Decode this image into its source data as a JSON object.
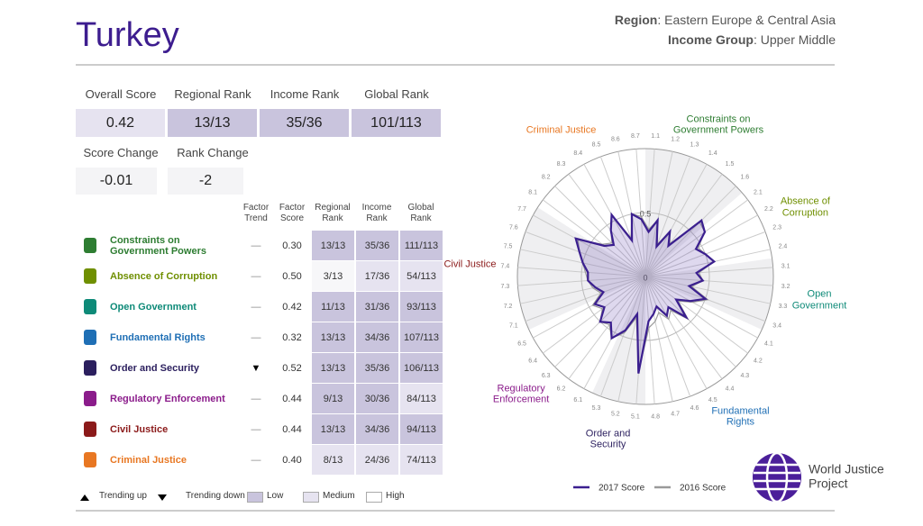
{
  "header": {
    "title": "Turkey",
    "region_label": "Region",
    "region": ": Eastern Europe & Central Asia",
    "income_label": "Income Group",
    "income": ": Upper Middle"
  },
  "summary": [
    {
      "label": "Overall Score",
      "value": 0.42
    },
    {
      "label": "Regional Rank",
      "value": "13/13"
    },
    {
      "label": "Income Rank",
      "value": "35/36"
    },
    {
      "label": "Global Rank",
      "value": "101/113"
    }
  ],
  "changes": [
    {
      "label": "Score Change",
      "value": -0.01
    },
    {
      "label": "Rank Change",
      "value": -2
    }
  ],
  "table": {
    "headers": [
      [
        "Factor",
        "Trend"
      ],
      [
        "Factor",
        "Score"
      ],
      [
        "Regional",
        "Rank"
      ],
      [
        "Income",
        "Rank"
      ],
      [
        "Global",
        "Rank"
      ]
    ],
    "rows": [
      {
        "factor": "Constraints on Government Powers",
        "color": "#2e7d32",
        "trend": "—",
        "score": "0.30",
        "ranks": [
          "13/13",
          "35/36",
          "111/113"
        ],
        "shades": [
          "#c9c4dd",
          "#c9c4dd",
          "#c9c4dd"
        ]
      },
      {
        "factor": "Absence of Corruption",
        "color": "#6f8f00",
        "trend": "—",
        "score": "0.50",
        "ranks": [
          "3/13",
          "17/36",
          "54/113"
        ],
        "shades": [
          "#f7f7f9",
          "#e6e3f0",
          "#e6e3f0"
        ]
      },
      {
        "factor": "Open Government",
        "color": "#0e8a78",
        "trend": "—",
        "score": "0.42",
        "ranks": [
          "11/13",
          "31/36",
          "93/113"
        ],
        "shades": [
          "#c9c4dd",
          "#c9c4dd",
          "#c9c4dd"
        ]
      },
      {
        "factor": "Fundamental Rights",
        "color": "#1f6fb5",
        "trend": "—",
        "score": "0.32",
        "ranks": [
          "13/13",
          "34/36",
          "107/113"
        ],
        "shades": [
          "#c9c4dd",
          "#c9c4dd",
          "#c9c4dd"
        ]
      },
      {
        "factor": "Order and Security",
        "color": "#2b1f5e",
        "trend": "▼",
        "score": "0.52",
        "ranks": [
          "13/13",
          "35/36",
          "106/113"
        ],
        "shades": [
          "#c9c4dd",
          "#c9c4dd",
          "#c9c4dd"
        ]
      },
      {
        "factor": "Regulatory Enforcement",
        "color": "#8b1c8b",
        "trend": "—",
        "score": "0.44",
        "ranks": [
          "9/13",
          "30/36",
          "84/113"
        ],
        "shades": [
          "#c9c4dd",
          "#c9c4dd",
          "#e6e3f0"
        ]
      },
      {
        "factor": "Civil Justice",
        "color": "#8b1a1a",
        "trend": "—",
        "score": "0.44",
        "ranks": [
          "13/13",
          "34/36",
          "94/113"
        ],
        "shades": [
          "#c9c4dd",
          "#c9c4dd",
          "#c9c4dd"
        ]
      },
      {
        "factor": "Criminal Justice",
        "color": "#e87722",
        "trend": "—",
        "score": "0.40",
        "ranks": [
          "8/13",
          "24/36",
          "74/113"
        ],
        "shades": [
          "#e6e3f0",
          "#e6e3f0",
          "#e6e3f0"
        ]
      }
    ],
    "legend": [
      {
        "label": "Trending up"
      },
      {
        "label": "Trending down"
      },
      {
        "label": "Low",
        "color": "#c9c4dd"
      },
      {
        "label": "Medium",
        "color": "#e6e3f0"
      },
      {
        "label": "High",
        "color": "#ffffff"
      }
    ]
  },
  "radar": {
    "rlim": [
      0,
      1
    ],
    "rticks": [
      0,
      0.5
    ],
    "factors": [
      {
        "name": "Constraints on Government Powers",
        "color": "#2e7d32"
      },
      {
        "name": "Absence of Corruption",
        "color": "#6f8f00"
      },
      {
        "name": "Open Government",
        "color": "#0e8a78"
      },
      {
        "name": "Fundamental Rights",
        "color": "#1f6fb5"
      },
      {
        "name": "Order and Security",
        "color": "#2b1f5e"
      },
      {
        "name": "Regulatory Enforcement",
        "color": "#8b1c8b"
      },
      {
        "name": "Civil Justice",
        "color": "#8b1a1a"
      },
      {
        "name": "Criminal Justice",
        "color": "#e87722"
      }
    ],
    "spokes": [
      "1.1",
      "1.2",
      "1.3",
      "1.4",
      "1.5",
      "1.6",
      "2.1",
      "2.2",
      "2.3",
      "2.4",
      "3.1",
      "3.2",
      "3.3",
      "3.4",
      "4.1",
      "4.2",
      "4.3",
      "4.4",
      "4.5",
      "4.6",
      "4.7",
      "4.8",
      "5.1",
      "5.2",
      "5.3",
      "6.1",
      "6.2",
      "6.3",
      "6.4",
      "6.5",
      "7.1",
      "7.2",
      "7.3",
      "7.4",
      "7.5",
      "7.6",
      "7.7",
      "8.1",
      "8.2",
      "8.3",
      "8.4",
      "8.5",
      "8.6",
      "8.7"
    ],
    "series": [
      {
        "name": "2017 Score",
        "color": "#3b1f8f",
        "values": [
          0.35,
          0.45,
          0.25,
          0.4,
          0.3,
          0.62,
          0.58,
          0.45,
          0.5,
          0.55,
          0.4,
          0.45,
          0.35,
          0.5,
          0.4,
          0.3,
          0.45,
          0.3,
          0.35,
          0.25,
          0.3,
          0.35,
          0.76,
          0.3,
          0.45,
          0.55,
          0.45,
          0.5,
          0.4,
          0.45,
          0.35,
          0.4,
          0.45,
          0.45,
          0.5,
          0.55,
          0.62,
          0.4,
          0.35,
          0.45,
          0.55,
          0.3,
          0.5,
          0.45
        ]
      },
      {
        "name": "2016 Score",
        "color": "#9a9a9a",
        "values": [
          0.37,
          0.45,
          0.27,
          0.4,
          0.32,
          0.6,
          0.58,
          0.47,
          0.5,
          0.55,
          0.42,
          0.45,
          0.37,
          0.52,
          0.42,
          0.32,
          0.47,
          0.33,
          0.38,
          0.3,
          0.36,
          0.4,
          0.74,
          0.33,
          0.47,
          0.55,
          0.47,
          0.5,
          0.42,
          0.47,
          0.37,
          0.42,
          0.45,
          0.47,
          0.5,
          0.55,
          0.6,
          0.42,
          0.37,
          0.45,
          0.55,
          0.32,
          0.5,
          0.47
        ]
      }
    ]
  },
  "logo": {
    "line1": "World Justice",
    "line2": "Project"
  }
}
